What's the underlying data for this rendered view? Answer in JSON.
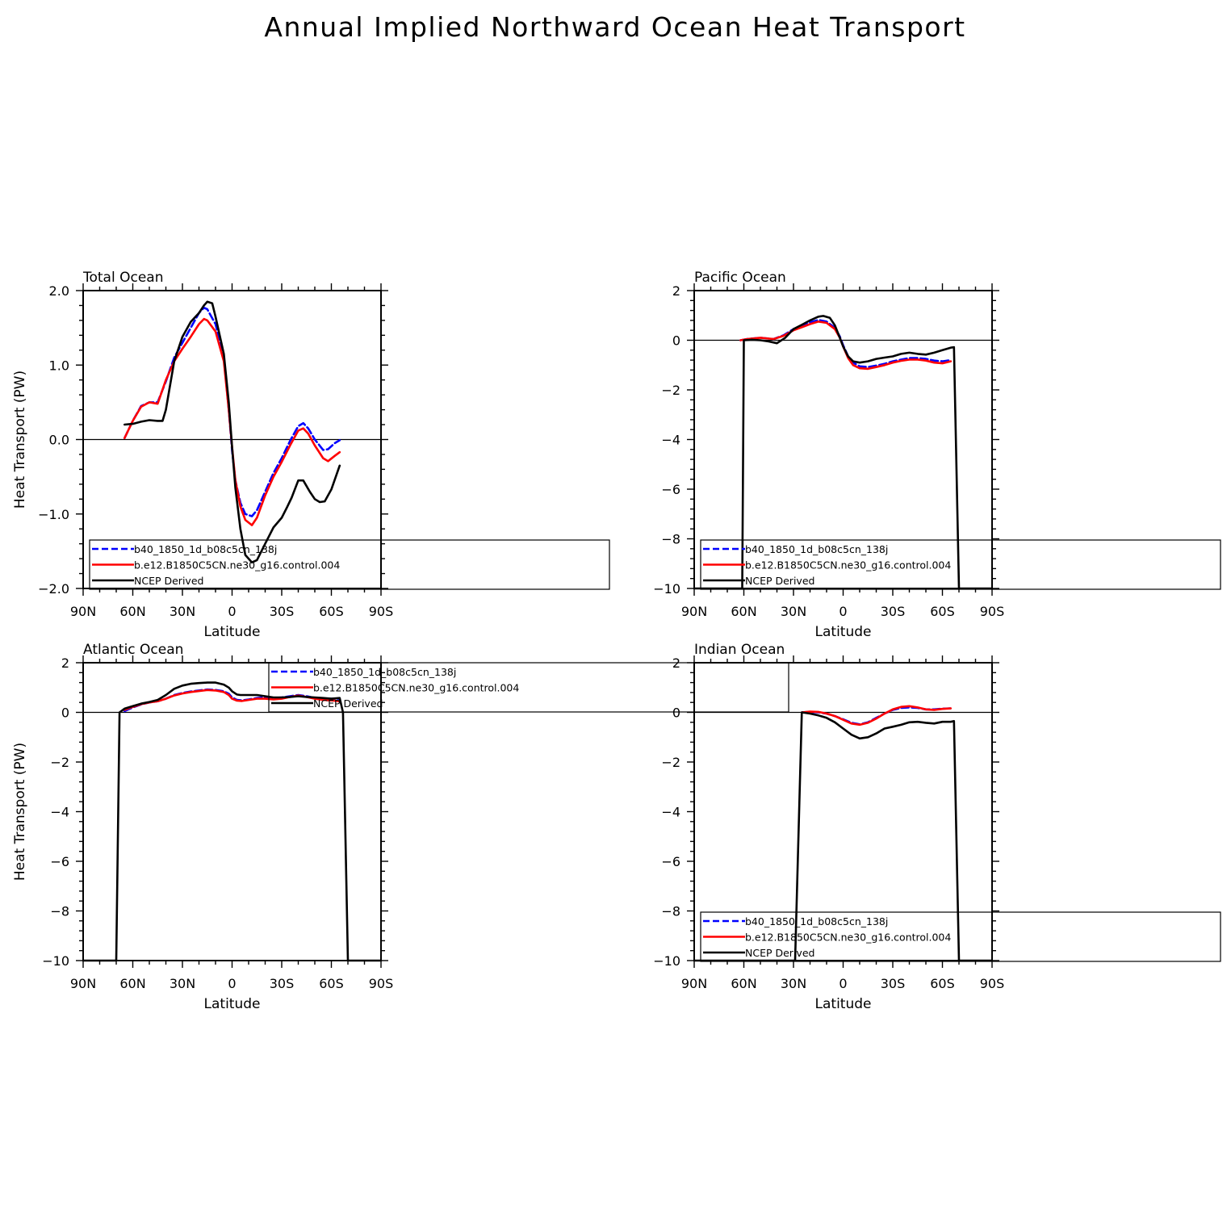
{
  "figure": {
    "title": "Annual Implied Northward Ocean Heat Transport"
  },
  "chart_data": [
    {
      "type": "line",
      "title": "Total Ocean",
      "xlabel": "Latitude",
      "ylabel": "Heat Transport (PW)",
      "xlim": [
        90,
        -90
      ],
      "ylim": [
        -2,
        2
      ],
      "x_ticks": [
        90,
        60,
        30,
        0,
        -30,
        -60,
        -90
      ],
      "x_tick_labels": [
        "90N",
        "60N",
        "30N",
        "0",
        "30S",
        "60S",
        "90S"
      ],
      "y_ticks": [
        -2,
        -1,
        0,
        1,
        2
      ],
      "y_tick_labels": [
        "−2.0",
        "−1.0",
        "0.0",
        "1.0",
        "2.0"
      ],
      "zero_line": true,
      "legend_position": "bottom",
      "series": [
        {
          "name": "b40_1850_1d_b08c5cn_138j",
          "color": "#0000ff",
          "dash": "dashed",
          "x": [
            65,
            60,
            55,
            50,
            45,
            40,
            35,
            30,
            25,
            20,
            17,
            15,
            10,
            5,
            2,
            0,
            -2,
            -5,
            -8,
            -12,
            -15,
            -20,
            -25,
            -30,
            -35,
            -40,
            -43,
            -46,
            -50,
            -55,
            -58,
            -62,
            -65
          ],
          "y": [
            0.02,
            0.25,
            0.45,
            0.5,
            0.5,
            0.78,
            1.1,
            1.3,
            1.5,
            1.7,
            1.77,
            1.75,
            1.55,
            1.1,
            0.4,
            -0.15,
            -0.55,
            -0.85,
            -1.0,
            -1.03,
            -0.95,
            -0.7,
            -0.45,
            -0.25,
            -0.02,
            0.18,
            0.22,
            0.15,
            0.0,
            -0.14,
            -0.13,
            -0.05,
            -0.01
          ]
        },
        {
          "name": "b.e12.B1850C5CN.ne30_g16.control.004",
          "color": "#ff0000",
          "dash": "solid",
          "x": [
            65,
            60,
            55,
            50,
            45,
            40,
            35,
            30,
            25,
            20,
            17,
            15,
            10,
            5,
            2,
            0,
            -2,
            -5,
            -8,
            -12,
            -15,
            -20,
            -25,
            -30,
            -35,
            -40,
            -43,
            -46,
            -50,
            -55,
            -58,
            -62,
            -65
          ],
          "y": [
            0.02,
            0.25,
            0.44,
            0.5,
            0.48,
            0.8,
            1.05,
            1.22,
            1.38,
            1.55,
            1.62,
            1.6,
            1.45,
            1.05,
            0.4,
            -0.1,
            -0.55,
            -0.9,
            -1.08,
            -1.15,
            -1.05,
            -0.75,
            -0.5,
            -0.3,
            -0.08,
            0.12,
            0.15,
            0.08,
            -0.08,
            -0.25,
            -0.29,
            -0.22,
            -0.17
          ]
        },
        {
          "name": "NCEP Derived",
          "color": "#000000",
          "dash": "solid",
          "x": [
            65,
            60,
            55,
            50,
            45,
            42,
            40,
            35,
            30,
            25,
            20,
            17,
            15,
            12,
            10,
            5,
            2,
            0,
            -2,
            -5,
            -8,
            -12,
            -15,
            -20,
            -25,
            -30,
            -33,
            -36,
            -40,
            -43,
            -47,
            -50,
            -53,
            -56,
            -60,
            -65
          ],
          "y": [
            0.2,
            0.21,
            0.24,
            0.26,
            0.25,
            0.25,
            0.4,
            1.05,
            1.38,
            1.58,
            1.7,
            1.8,
            1.85,
            1.83,
            1.65,
            1.15,
            0.5,
            -0.1,
            -0.65,
            -1.2,
            -1.55,
            -1.65,
            -1.62,
            -1.4,
            -1.18,
            -1.05,
            -0.92,
            -0.78,
            -0.55,
            -0.55,
            -0.7,
            -0.8,
            -0.84,
            -0.83,
            -0.67,
            -0.35
          ]
        }
      ]
    },
    {
      "type": "line",
      "title": "Pacific Ocean",
      "xlabel": "Latitude",
      "ylabel": "",
      "xlim": [
        90,
        -90
      ],
      "ylim": [
        -10,
        2
      ],
      "x_ticks": [
        90,
        60,
        30,
        0,
        -30,
        -60,
        -90
      ],
      "x_tick_labels": [
        "90N",
        "60N",
        "30N",
        "0",
        "30S",
        "60S",
        "90S"
      ],
      "y_ticks": [
        -10,
        -8,
        -6,
        -4,
        -2,
        0,
        2
      ],
      "y_tick_labels": [
        "−10",
        "−8",
        "−6",
        "−4",
        "−2",
        "0",
        "2"
      ],
      "zero_line": true,
      "legend_position": "bottom",
      "series": [
        {
          "name": "b40_1850_1d_b08c5cn_138j",
          "color": "#0000ff",
          "dash": "dashed",
          "x": [
            62,
            58,
            50,
            42,
            36,
            30,
            24,
            20,
            15,
            10,
            5,
            2,
            0,
            -3,
            -6,
            -10,
            -15,
            -20,
            -25,
            -30,
            -35,
            -40,
            -45,
            -50,
            -55,
            -60,
            -65
          ],
          "y": [
            0.0,
            0.05,
            0.1,
            0.05,
            0.2,
            0.45,
            0.6,
            0.72,
            0.82,
            0.75,
            0.5,
            0.15,
            -0.2,
            -0.65,
            -0.9,
            -1.05,
            -1.08,
            -1.02,
            -0.95,
            -0.85,
            -0.78,
            -0.72,
            -0.72,
            -0.75,
            -0.82,
            -0.85,
            -0.8
          ]
        },
        {
          "name": "b.e12.B1850C5CN.ne30_g16.control.004",
          "color": "#ff0000",
          "dash": "solid",
          "x": [
            62,
            58,
            50,
            42,
            36,
            30,
            24,
            20,
            15,
            10,
            5,
            2,
            0,
            -3,
            -6,
            -10,
            -15,
            -20,
            -25,
            -30,
            -35,
            -40,
            -45,
            -50,
            -55,
            -60,
            -65
          ],
          "y": [
            0.0,
            0.05,
            0.1,
            0.05,
            0.18,
            0.4,
            0.55,
            0.65,
            0.75,
            0.7,
            0.45,
            0.1,
            -0.25,
            -0.72,
            -1.0,
            -1.13,
            -1.15,
            -1.08,
            -1.0,
            -0.9,
            -0.83,
            -0.78,
            -0.78,
            -0.82,
            -0.9,
            -0.93,
            -0.85
          ]
        },
        {
          "name": "NCEP Derived",
          "color": "#000000",
          "dash": "solid",
          "x": [
            90,
            61,
            60,
            55,
            50,
            45,
            40,
            35,
            30,
            25,
            20,
            15,
            12,
            8,
            5,
            2,
            0,
            -3,
            -6,
            -10,
            -15,
            -20,
            -25,
            -30,
            -35,
            -40,
            -45,
            -50,
            -55,
            -60,
            -65,
            -67,
            -70,
            -90
          ],
          "y": [
            -10,
            -10,
            0.0,
            0.02,
            0.0,
            -0.05,
            -0.12,
            0.1,
            0.45,
            0.62,
            0.8,
            0.95,
            0.98,
            0.9,
            0.6,
            0.1,
            -0.25,
            -0.65,
            -0.85,
            -0.9,
            -0.85,
            -0.75,
            -0.7,
            -0.65,
            -0.55,
            -0.5,
            -0.55,
            -0.58,
            -0.5,
            -0.4,
            -0.3,
            -0.28,
            -10,
            -10
          ]
        }
      ]
    },
    {
      "type": "line",
      "title": "Atlantic Ocean",
      "xlabel": "Latitude",
      "ylabel": "Heat Transport (PW)",
      "xlim": [
        90,
        -90
      ],
      "ylim": [
        -10,
        2
      ],
      "x_ticks": [
        90,
        60,
        30,
        0,
        -30,
        -60,
        -90
      ],
      "x_tick_labels": [
        "90N",
        "60N",
        "30N",
        "0",
        "30S",
        "60S",
        "90S"
      ],
      "y_ticks": [
        -10,
        -8,
        -6,
        -4,
        -2,
        0,
        2
      ],
      "y_tick_labels": [
        "−10",
        "−8",
        "−6",
        "−4",
        "−2",
        "0",
        "2"
      ],
      "zero_line": true,
      "legend_position": "top-right",
      "series": [
        {
          "name": "b40_1850_1d_b08c5cn_138j",
          "color": "#0000ff",
          "dash": "dashed",
          "x": [
            65,
            60,
            55,
            50,
            45,
            40,
            35,
            30,
            25,
            20,
            15,
            10,
            5,
            2,
            0,
            -3,
            -6,
            -10,
            -15,
            -20,
            -25,
            -30,
            -35,
            -40,
            -45,
            -50,
            -55,
            -60,
            -65
          ],
          "y": [
            0.05,
            0.2,
            0.32,
            0.4,
            0.45,
            0.55,
            0.7,
            0.78,
            0.84,
            0.88,
            0.92,
            0.9,
            0.85,
            0.75,
            0.6,
            0.5,
            0.48,
            0.52,
            0.58,
            0.6,
            0.58,
            0.6,
            0.65,
            0.7,
            0.65,
            0.58,
            0.55,
            0.55,
            0.55
          ]
        },
        {
          "name": "b.e12.B1850C5CN.ne30_g16.control.004",
          "color": "#ff0000",
          "dash": "solid",
          "x": [
            65,
            60,
            55,
            50,
            45,
            40,
            35,
            30,
            25,
            20,
            15,
            10,
            5,
            2,
            0,
            -3,
            -6,
            -10,
            -15,
            -20,
            -25,
            -30,
            -35,
            -40,
            -45,
            -50,
            -55,
            -60,
            -65
          ],
          "y": [
            0.1,
            0.22,
            0.33,
            0.4,
            0.45,
            0.55,
            0.68,
            0.76,
            0.82,
            0.86,
            0.9,
            0.88,
            0.82,
            0.7,
            0.55,
            0.47,
            0.46,
            0.5,
            0.55,
            0.55,
            0.52,
            0.55,
            0.62,
            0.68,
            0.62,
            0.55,
            0.5,
            0.48,
            0.45
          ]
        },
        {
          "name": "NCEP Derived",
          "color": "#000000",
          "dash": "solid",
          "x": [
            90,
            70,
            68,
            65,
            60,
            55,
            50,
            45,
            40,
            35,
            30,
            25,
            20,
            15,
            10,
            5,
            2,
            0,
            -3,
            -5,
            -10,
            -15,
            -20,
            -25,
            -30,
            -35,
            -40,
            -45,
            -50,
            -55,
            -60,
            -65,
            -67,
            -70,
            -90
          ],
          "y": [
            -10,
            -10,
            0.0,
            0.15,
            0.25,
            0.35,
            0.42,
            0.5,
            0.7,
            0.95,
            1.08,
            1.15,
            1.18,
            1.2,
            1.2,
            1.12,
            1.0,
            0.85,
            0.72,
            0.7,
            0.7,
            0.7,
            0.65,
            0.6,
            0.6,
            0.62,
            0.65,
            0.62,
            0.6,
            0.58,
            0.55,
            0.58,
            0.0,
            -10,
            -10
          ]
        }
      ]
    },
    {
      "type": "line",
      "title": "Indian Ocean",
      "xlabel": "Latitude",
      "ylabel": "",
      "xlim": [
        90,
        -90
      ],
      "ylim": [
        -10,
        2
      ],
      "x_ticks": [
        90,
        60,
        30,
        0,
        -30,
        -60,
        -90
      ],
      "x_tick_labels": [
        "90N",
        "60N",
        "30N",
        "0",
        "30S",
        "60S",
        "90S"
      ],
      "y_ticks": [
        -10,
        -8,
        -6,
        -4,
        -2,
        0,
        2
      ],
      "y_tick_labels": [
        "−10",
        "−8",
        "−6",
        "−4",
        "−2",
        "0",
        "2"
      ],
      "zero_line": true,
      "legend_position": "bottom",
      "series": [
        {
          "name": "b40_1850_1d_b08c5cn_138j",
          "color": "#0000ff",
          "dash": "dashed",
          "x": [
            25,
            20,
            15,
            10,
            5,
            0,
            -5,
            -10,
            -15,
            -20,
            -25,
            -30,
            -35,
            -40,
            -45,
            -50,
            -55,
            -60,
            -65
          ],
          "y": [
            0.0,
            0.02,
            0.0,
            -0.05,
            -0.15,
            -0.28,
            -0.42,
            -0.48,
            -0.4,
            -0.22,
            -0.05,
            0.1,
            0.18,
            0.2,
            0.18,
            0.12,
            0.12,
            0.15,
            0.16
          ]
        },
        {
          "name": "b.e12.B1850C5CN.ne30_g16.control.004",
          "color": "#ff0000",
          "dash": "solid",
          "x": [
            25,
            20,
            15,
            10,
            5,
            0,
            -5,
            -10,
            -15,
            -20,
            -25,
            -30,
            -35,
            -40,
            -45,
            -50,
            -55,
            -60,
            -65
          ],
          "y": [
            0.0,
            0.03,
            0.02,
            -0.05,
            -0.15,
            -0.3,
            -0.45,
            -0.5,
            -0.42,
            -0.25,
            -0.05,
            0.12,
            0.22,
            0.25,
            0.2,
            0.12,
            0.1,
            0.14,
            0.16
          ]
        },
        {
          "name": "NCEP Derived",
          "color": "#000000",
          "dash": "solid",
          "x": [
            90,
            29,
            25,
            20,
            15,
            10,
            5,
            0,
            -5,
            -10,
            -15,
            -20,
            -25,
            -30,
            -35,
            -40,
            -45,
            -50,
            -55,
            -60,
            -65,
            -67,
            -70,
            -90
          ],
          "y": [
            -10,
            -10,
            0.0,
            -0.05,
            -0.12,
            -0.22,
            -0.4,
            -0.65,
            -0.9,
            -1.05,
            -1.0,
            -0.85,
            -0.65,
            -0.58,
            -0.5,
            -0.4,
            -0.38,
            -0.42,
            -0.45,
            -0.38,
            -0.38,
            -0.35,
            -10,
            -10
          ]
        }
      ]
    }
  ]
}
